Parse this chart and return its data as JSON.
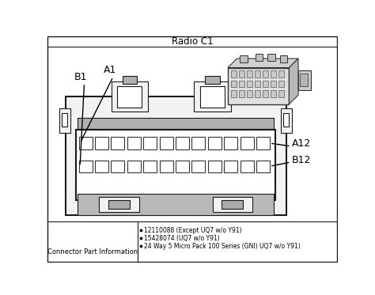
{
  "title": "Radio C1",
  "label_B1": "B1",
  "label_A1": "A1",
  "label_A12": "A12",
  "label_B12": "B12",
  "bullet_points": [
    "12110088 (Except UQ7 w/o Y91)",
    "15428074 (UQ7 w/o Y91)",
    "24 Way 5 Micro Pack 100 Series (GNI) UQ7 w/o Y91)"
  ],
  "bottom_left_label": "Connector Part Information",
  "num_cols": 12,
  "num_rows": 2,
  "bg_light": "#f2f2f2",
  "bg_white": "#ffffff",
  "line_dark": "#1a1a1a",
  "fill_mid": "#cccccc",
  "fill_dark": "#999999"
}
